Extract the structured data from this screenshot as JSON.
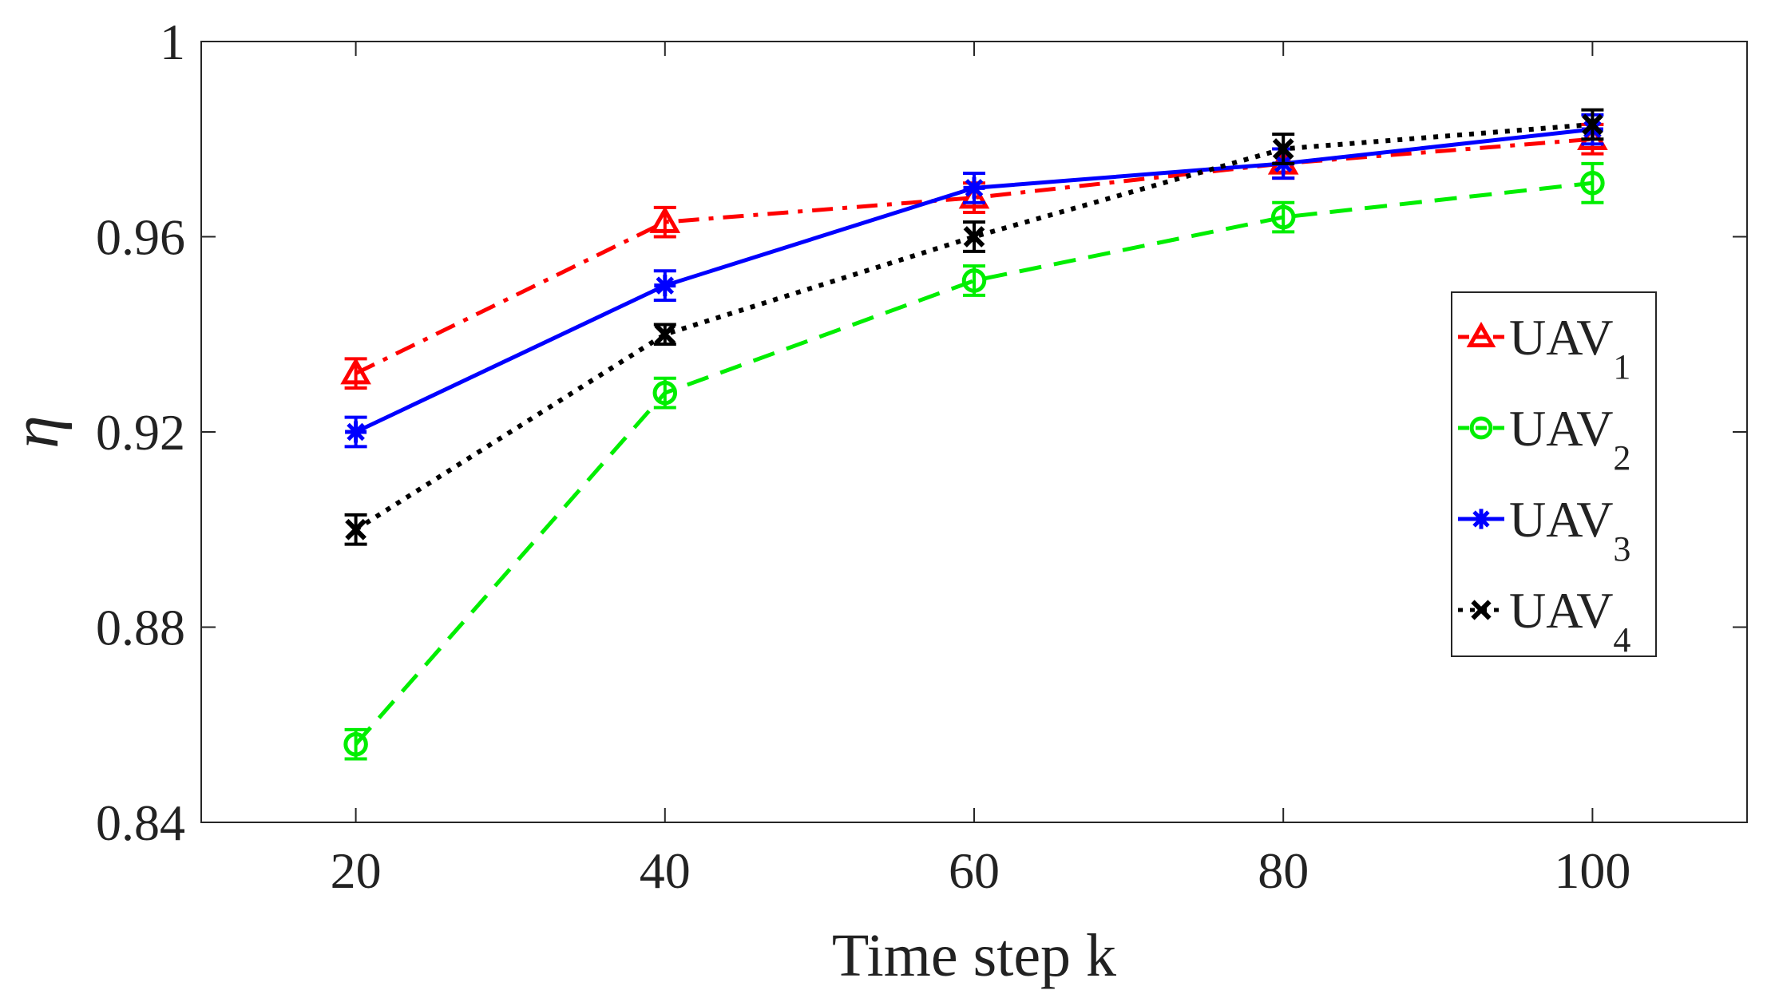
{
  "chart_data": {
    "type": "line",
    "title": "",
    "xlabel": "Time step k",
    "ylabel": "η",
    "xlim": [
      10,
      110
    ],
    "ylim": [
      0.84,
      1.0
    ],
    "x": [
      20,
      40,
      60,
      80,
      100
    ],
    "xticks": [
      "20",
      "40",
      "60",
      "80",
      "100"
    ],
    "yticks": [
      "0.84",
      "0.88",
      "0.92",
      "0.96",
      "1"
    ],
    "legend_position": "right-middle",
    "series": [
      {
        "name": "UAV",
        "subscript": "1",
        "values": [
          0.932,
          0.963,
          0.968,
          0.975,
          0.98
        ],
        "error": [
          0.003,
          0.003,
          0.003,
          0.003,
          0.003
        ],
        "color": "#ff0000",
        "line_style": "dashdot",
        "marker": "triangle"
      },
      {
        "name": "UAV",
        "subscript": "2",
        "values": [
          0.856,
          0.928,
          0.951,
          0.964,
          0.971
        ],
        "error": [
          0.003,
          0.003,
          0.003,
          0.003,
          0.004
        ],
        "color": "#00ee00",
        "line_style": "dashed",
        "marker": "circle"
      },
      {
        "name": "UAV",
        "subscript": "3",
        "values": [
          0.92,
          0.95,
          0.97,
          0.975,
          0.982
        ],
        "error": [
          0.003,
          0.003,
          0.003,
          0.003,
          0.003
        ],
        "color": "#0000ff",
        "line_style": "solid",
        "marker": "asterisk"
      },
      {
        "name": "UAV",
        "subscript": "4",
        "values": [
          0.9,
          0.94,
          0.96,
          0.978,
          0.983
        ],
        "error": [
          0.003,
          0.002,
          0.003,
          0.003,
          0.003
        ],
        "color": "#000000",
        "line_style": "dotted",
        "marker": "x"
      }
    ]
  }
}
